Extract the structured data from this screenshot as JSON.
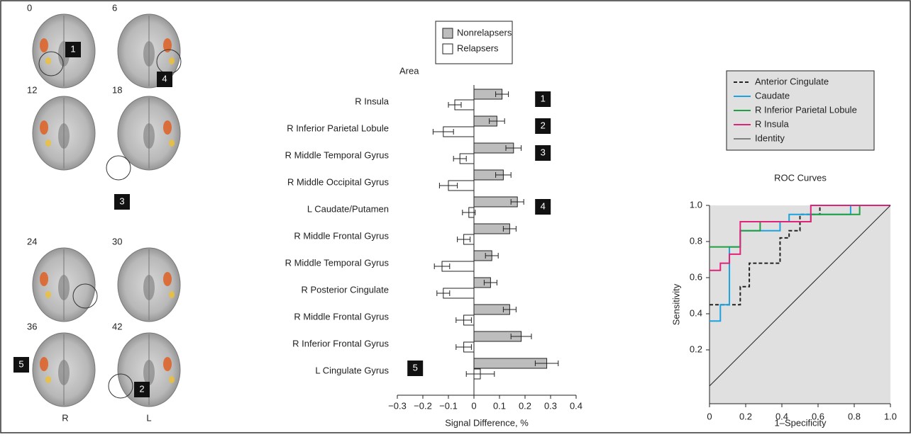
{
  "brain_panel": {
    "slices": [
      0,
      6,
      12,
      18,
      24,
      30,
      36,
      42
    ],
    "badges": [
      "1",
      "4",
      "3",
      "5",
      "2"
    ],
    "sides": [
      "R",
      "L"
    ]
  },
  "chart_data": [
    {
      "type": "bar",
      "orientation": "horizontal",
      "axis_header": "Area",
      "x_label": "Signal Difference, %",
      "categories": [
        "R Insula",
        "R Inferior Parietal Lobule",
        "R Middle Temporal Gyrus",
        "R Middle Occipital Gyrus",
        "L Caudate/Putamen",
        "R Middle Frontal Gyrus",
        "R Middle Temporal Gyrus",
        "R Posterior Cingulate",
        "R Middle Frontal Gyrus",
        "R Inferior Frontal Gyrus",
        "L Cingulate Gyrus"
      ],
      "badges": [
        "1",
        "2",
        "3",
        null,
        "4",
        null,
        null,
        null,
        null,
        null,
        "5"
      ],
      "series": [
        {
          "name": "Nonrelapsers",
          "color": "#bdbdbd",
          "values": [
            0.11,
            0.09,
            0.155,
            0.115,
            0.17,
            0.14,
            0.07,
            0.065,
            0.14,
            0.185,
            0.285
          ],
          "errors": [
            0.025,
            0.03,
            0.03,
            0.03,
            0.025,
            0.025,
            0.025,
            0.025,
            0.025,
            0.04,
            0.045
          ]
        },
        {
          "name": "Relapsers",
          "color": "#ffffff",
          "values": [
            -0.075,
            -0.12,
            -0.055,
            -0.1,
            -0.02,
            -0.04,
            -0.125,
            -0.12,
            -0.04,
            -0.04,
            0.025
          ],
          "errors": [
            0.025,
            0.04,
            0.025,
            0.035,
            0.025,
            0.025,
            0.03,
            0.025,
            0.03,
            0.03,
            0.055
          ]
        }
      ],
      "xlim": [
        -0.3,
        0.4
      ],
      "xticks": [
        {
          "value": -0.3,
          "label": "−0.3"
        },
        {
          "value": -0.2,
          "label": "−0.2"
        },
        {
          "value": -0.1,
          "label": "−0.1"
        },
        0,
        0.1,
        0.2,
        0.3,
        0.4
      ]
    },
    {
      "type": "line",
      "title": "ROC Curves",
      "x_label": "1–Specificity",
      "y_label": "Sensitivity",
      "series": [
        {
          "name": "Anterior Cingulate",
          "color": "#222222",
          "dash": "dashed",
          "x": [
            0,
            0.17,
            0.17,
            0.22,
            0.22,
            0.39,
            0.39,
            0.44,
            0.44,
            0.5,
            0.5,
            0.61,
            0.61,
            1
          ],
          "y": [
            0.45,
            0.45,
            0.55,
            0.55,
            0.68,
            0.68,
            0.82,
            0.82,
            0.86,
            0.86,
            0.95,
            0.95,
            1,
            1
          ]
        },
        {
          "name": "Caudate",
          "color": "#1aa3e0",
          "dash": "solid",
          "x": [
            0,
            0.06,
            0.06,
            0.11,
            0.11,
            0.17,
            0.17,
            0.39,
            0.39,
            0.44,
            0.44,
            0.78,
            0.78,
            1
          ],
          "y": [
            0.36,
            0.36,
            0.45,
            0.45,
            0.77,
            0.77,
            0.86,
            0.86,
            0.91,
            0.91,
            0.95,
            0.95,
            1,
            1
          ]
        },
        {
          "name": "R Inferior Parietal Lobule",
          "color": "#20a040",
          "dash": "solid",
          "x": [
            0,
            0.17,
            0.17,
            0.28,
            0.28,
            0.56,
            0.56,
            0.83,
            0.83,
            1
          ],
          "y": [
            0.77,
            0.77,
            0.86,
            0.86,
            0.91,
            0.91,
            0.95,
            0.95,
            1,
            1
          ]
        },
        {
          "name": "R Insula",
          "color": "#e0237a",
          "dash": "solid",
          "x": [
            0,
            0.06,
            0.06,
            0.11,
            0.11,
            0.17,
            0.17,
            0.56,
            0.56,
            1
          ],
          "y": [
            0.64,
            0.64,
            0.68,
            0.68,
            0.73,
            0.73,
            0.91,
            0.91,
            1,
            1
          ]
        },
        {
          "name": "Identity",
          "color": "#222222",
          "dash": "solid",
          "x": [
            0,
            1
          ],
          "y": [
            0,
            1
          ]
        }
      ],
      "xlim": [
        0,
        1
      ],
      "ylim": [
        0,
        1
      ],
      "xticks": [
        0,
        0.2,
        0.4,
        0.6,
        0.8,
        {
          "value": 1,
          "label": "1.0"
        }
      ],
      "yticks": [
        0.2,
        0.4,
        0.6,
        0.8,
        {
          "value": 1,
          "label": "1.0"
        }
      ]
    }
  ]
}
